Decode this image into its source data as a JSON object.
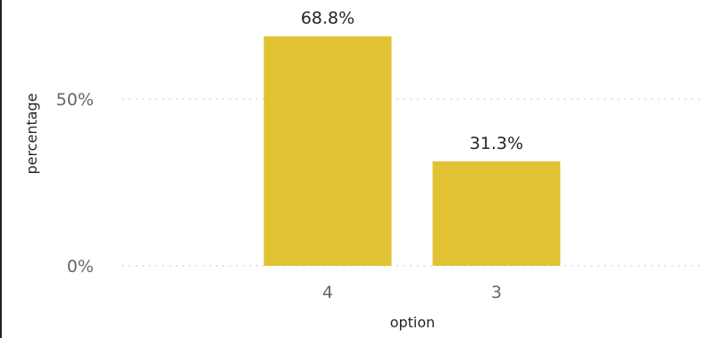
{
  "chart_data": {
    "type": "bar",
    "categories": [
      "4",
      "3"
    ],
    "values": [
      68.8,
      31.3
    ],
    "data_labels": [
      "68.8%",
      "31.3%"
    ],
    "xlabel": "option",
    "ylabel": "percentage",
    "ylim": [
      0,
      75
    ],
    "y_ticks": [
      {
        "value": 0,
        "label": "0%"
      },
      {
        "value": 50,
        "label": "50%"
      }
    ],
    "bar_color": "#E0C232",
    "grid": true,
    "legend": "none"
  }
}
